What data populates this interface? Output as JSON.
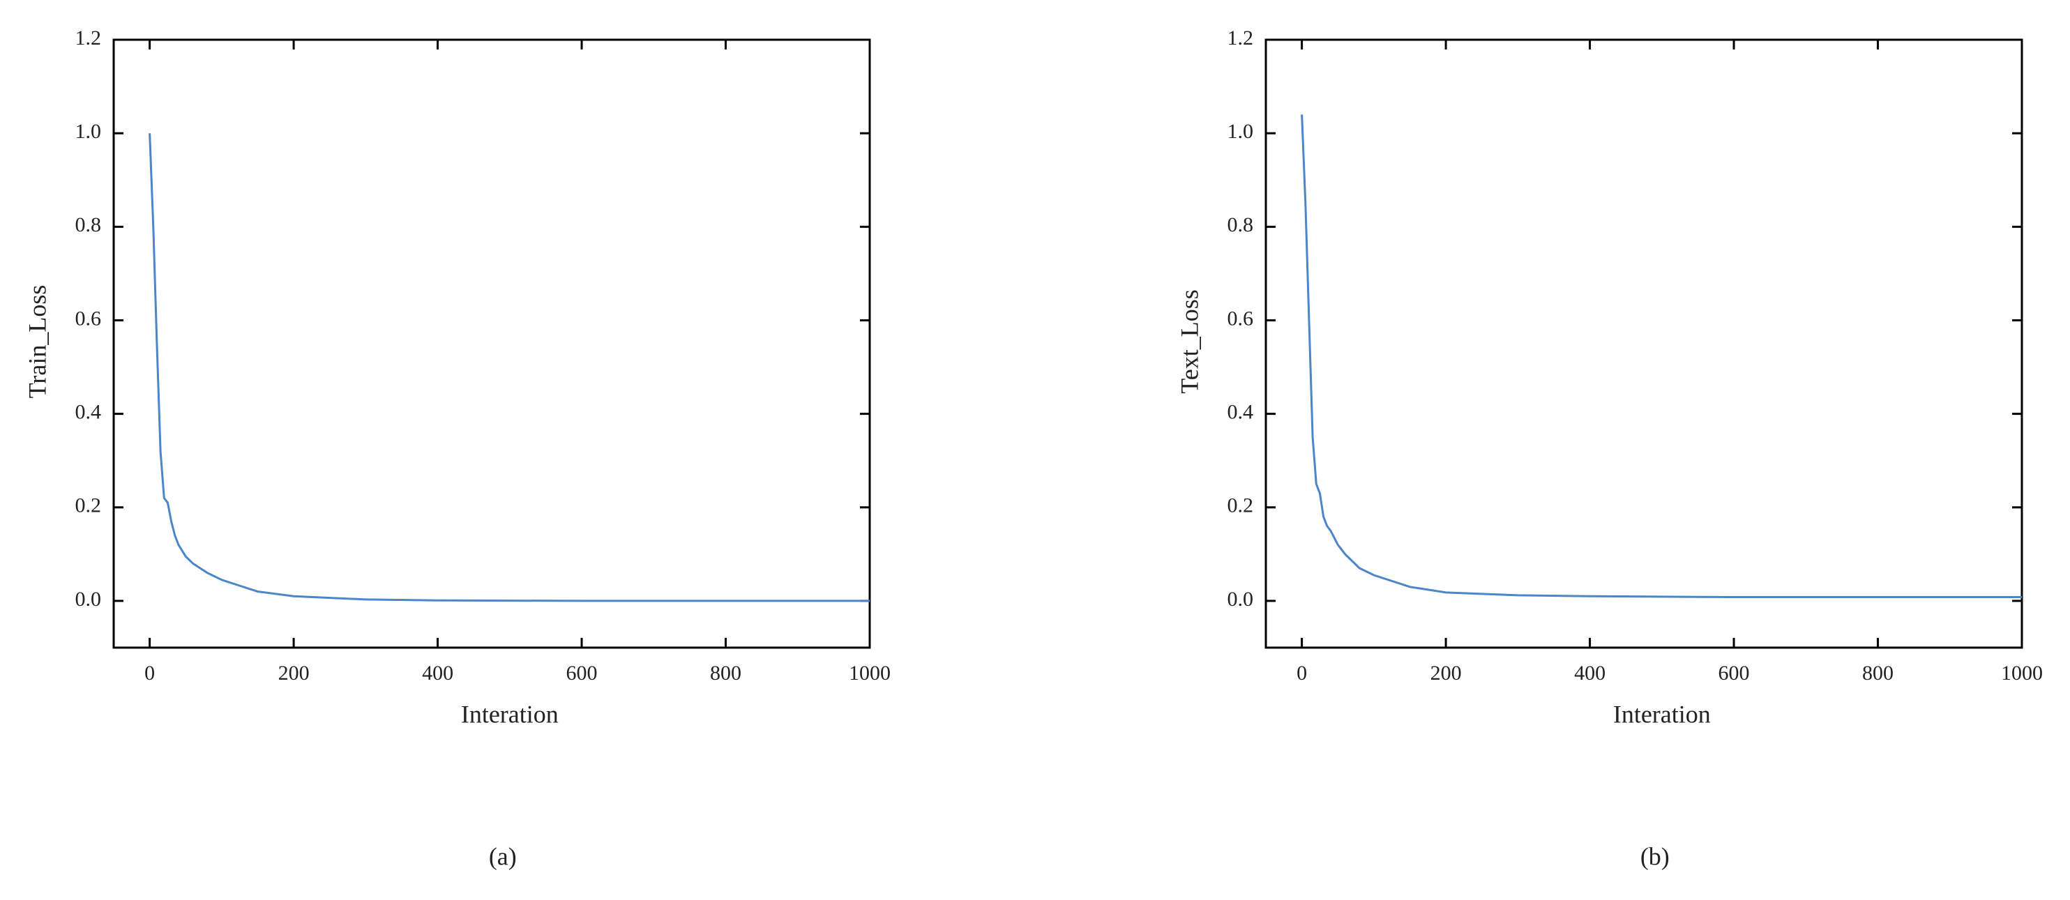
{
  "chart_data": [
    {
      "type": "line",
      "caption": "(a)",
      "x_label": "Interation",
      "y_label": "Train_Loss",
      "color": "#4a86c8",
      "x": [
        0,
        5,
        10,
        15,
        20,
        25,
        30,
        35,
        40,
        50,
        60,
        80,
        100,
        150,
        200,
        300,
        400,
        600,
        800,
        1000
      ],
      "values": [
        1.0,
        0.8,
        0.55,
        0.32,
        0.22,
        0.21,
        0.17,
        0.14,
        0.12,
        0.095,
        0.08,
        0.06,
        0.045,
        0.02,
        0.01,
        0.003,
        0.001,
        0,
        0,
        0
      ],
      "xlim": [
        -50,
        1000
      ],
      "ylim": [
        -0.1,
        1.2
      ],
      "xticks": [
        0,
        200,
        400,
        600,
        800,
        1000
      ],
      "yticks": [
        {
          "value": 0,
          "label": "0.0"
        },
        0.2,
        0.4,
        0.6,
        0.8,
        {
          "value": 1,
          "label": "1.0"
        },
        1.2
      ]
    },
    {
      "type": "line",
      "caption": "(b)",
      "x_label": "Interation",
      "y_label": "Text_Loss",
      "color": "#4a86c8",
      "x": [
        0,
        5,
        10,
        15,
        20,
        25,
        30,
        35,
        40,
        50,
        60,
        80,
        100,
        150,
        200,
        300,
        400,
        600,
        800,
        1000
      ],
      "values": [
        1.04,
        0.85,
        0.6,
        0.35,
        0.25,
        0.23,
        0.18,
        0.16,
        0.15,
        0.12,
        0.1,
        0.07,
        0.055,
        0.03,
        0.018,
        0.012,
        0.01,
        0.008,
        0.008,
        0.008
      ],
      "xlim": [
        -50,
        1000
      ],
      "ylim": [
        -0.1,
        1.2
      ],
      "xticks": [
        0,
        200,
        400,
        600,
        800,
        1000
      ],
      "yticks": [
        {
          "value": 0,
          "label": "0.0"
        },
        0.2,
        0.4,
        0.6,
        0.8,
        {
          "value": 1,
          "label": "1.0"
        },
        1.2
      ]
    }
  ]
}
